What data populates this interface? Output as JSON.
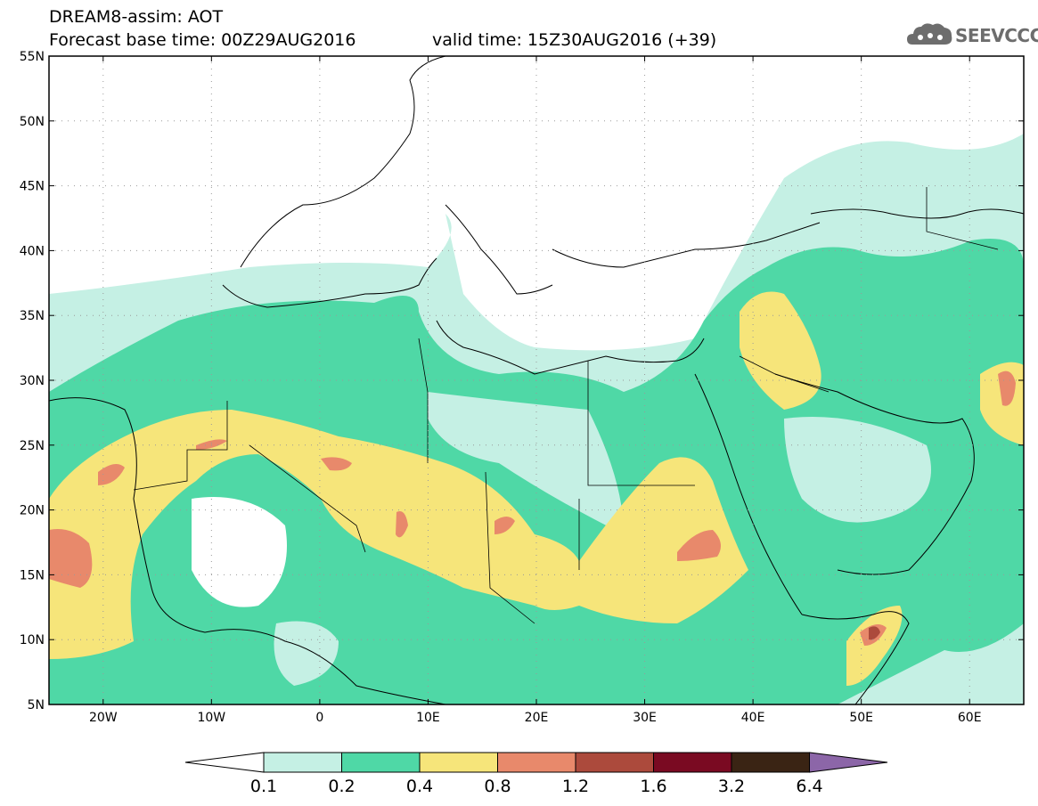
{
  "header": {
    "line1": "DREAM8-assim: AOT",
    "line2_base": "Forecast base time: 00Z29AUG2016",
    "line2_valid": "valid time: 15Z30AUG2016 (+39)"
  },
  "logo": {
    "text": "SEEVCCC",
    "icon": "cloud-icon"
  },
  "map": {
    "lon_range": [
      -25,
      65
    ],
    "lat_range": [
      5,
      55
    ],
    "lat_ticks": [
      "55N",
      "50N",
      "45N",
      "40N",
      "35N",
      "30N",
      "25N",
      "20N",
      "15N",
      "10N",
      "5N"
    ],
    "lon_ticks": [
      "20W",
      "10W",
      "0",
      "10E",
      "20E",
      "30E",
      "40E",
      "50E",
      "60E"
    ],
    "grid": "dotted"
  },
  "legend": {
    "levels": [
      "0.1",
      "0.2",
      "0.4",
      "0.8",
      "1.2",
      "1.6",
      "3.2",
      "6.4"
    ],
    "colors": [
      "#ffffff",
      "#c5f0e4",
      "#4fd8a6",
      "#f6e57a",
      "#e8896b",
      "#ac4a3c",
      "#7a0a22",
      "#3a2414",
      "#8c66a8"
    ]
  }
}
